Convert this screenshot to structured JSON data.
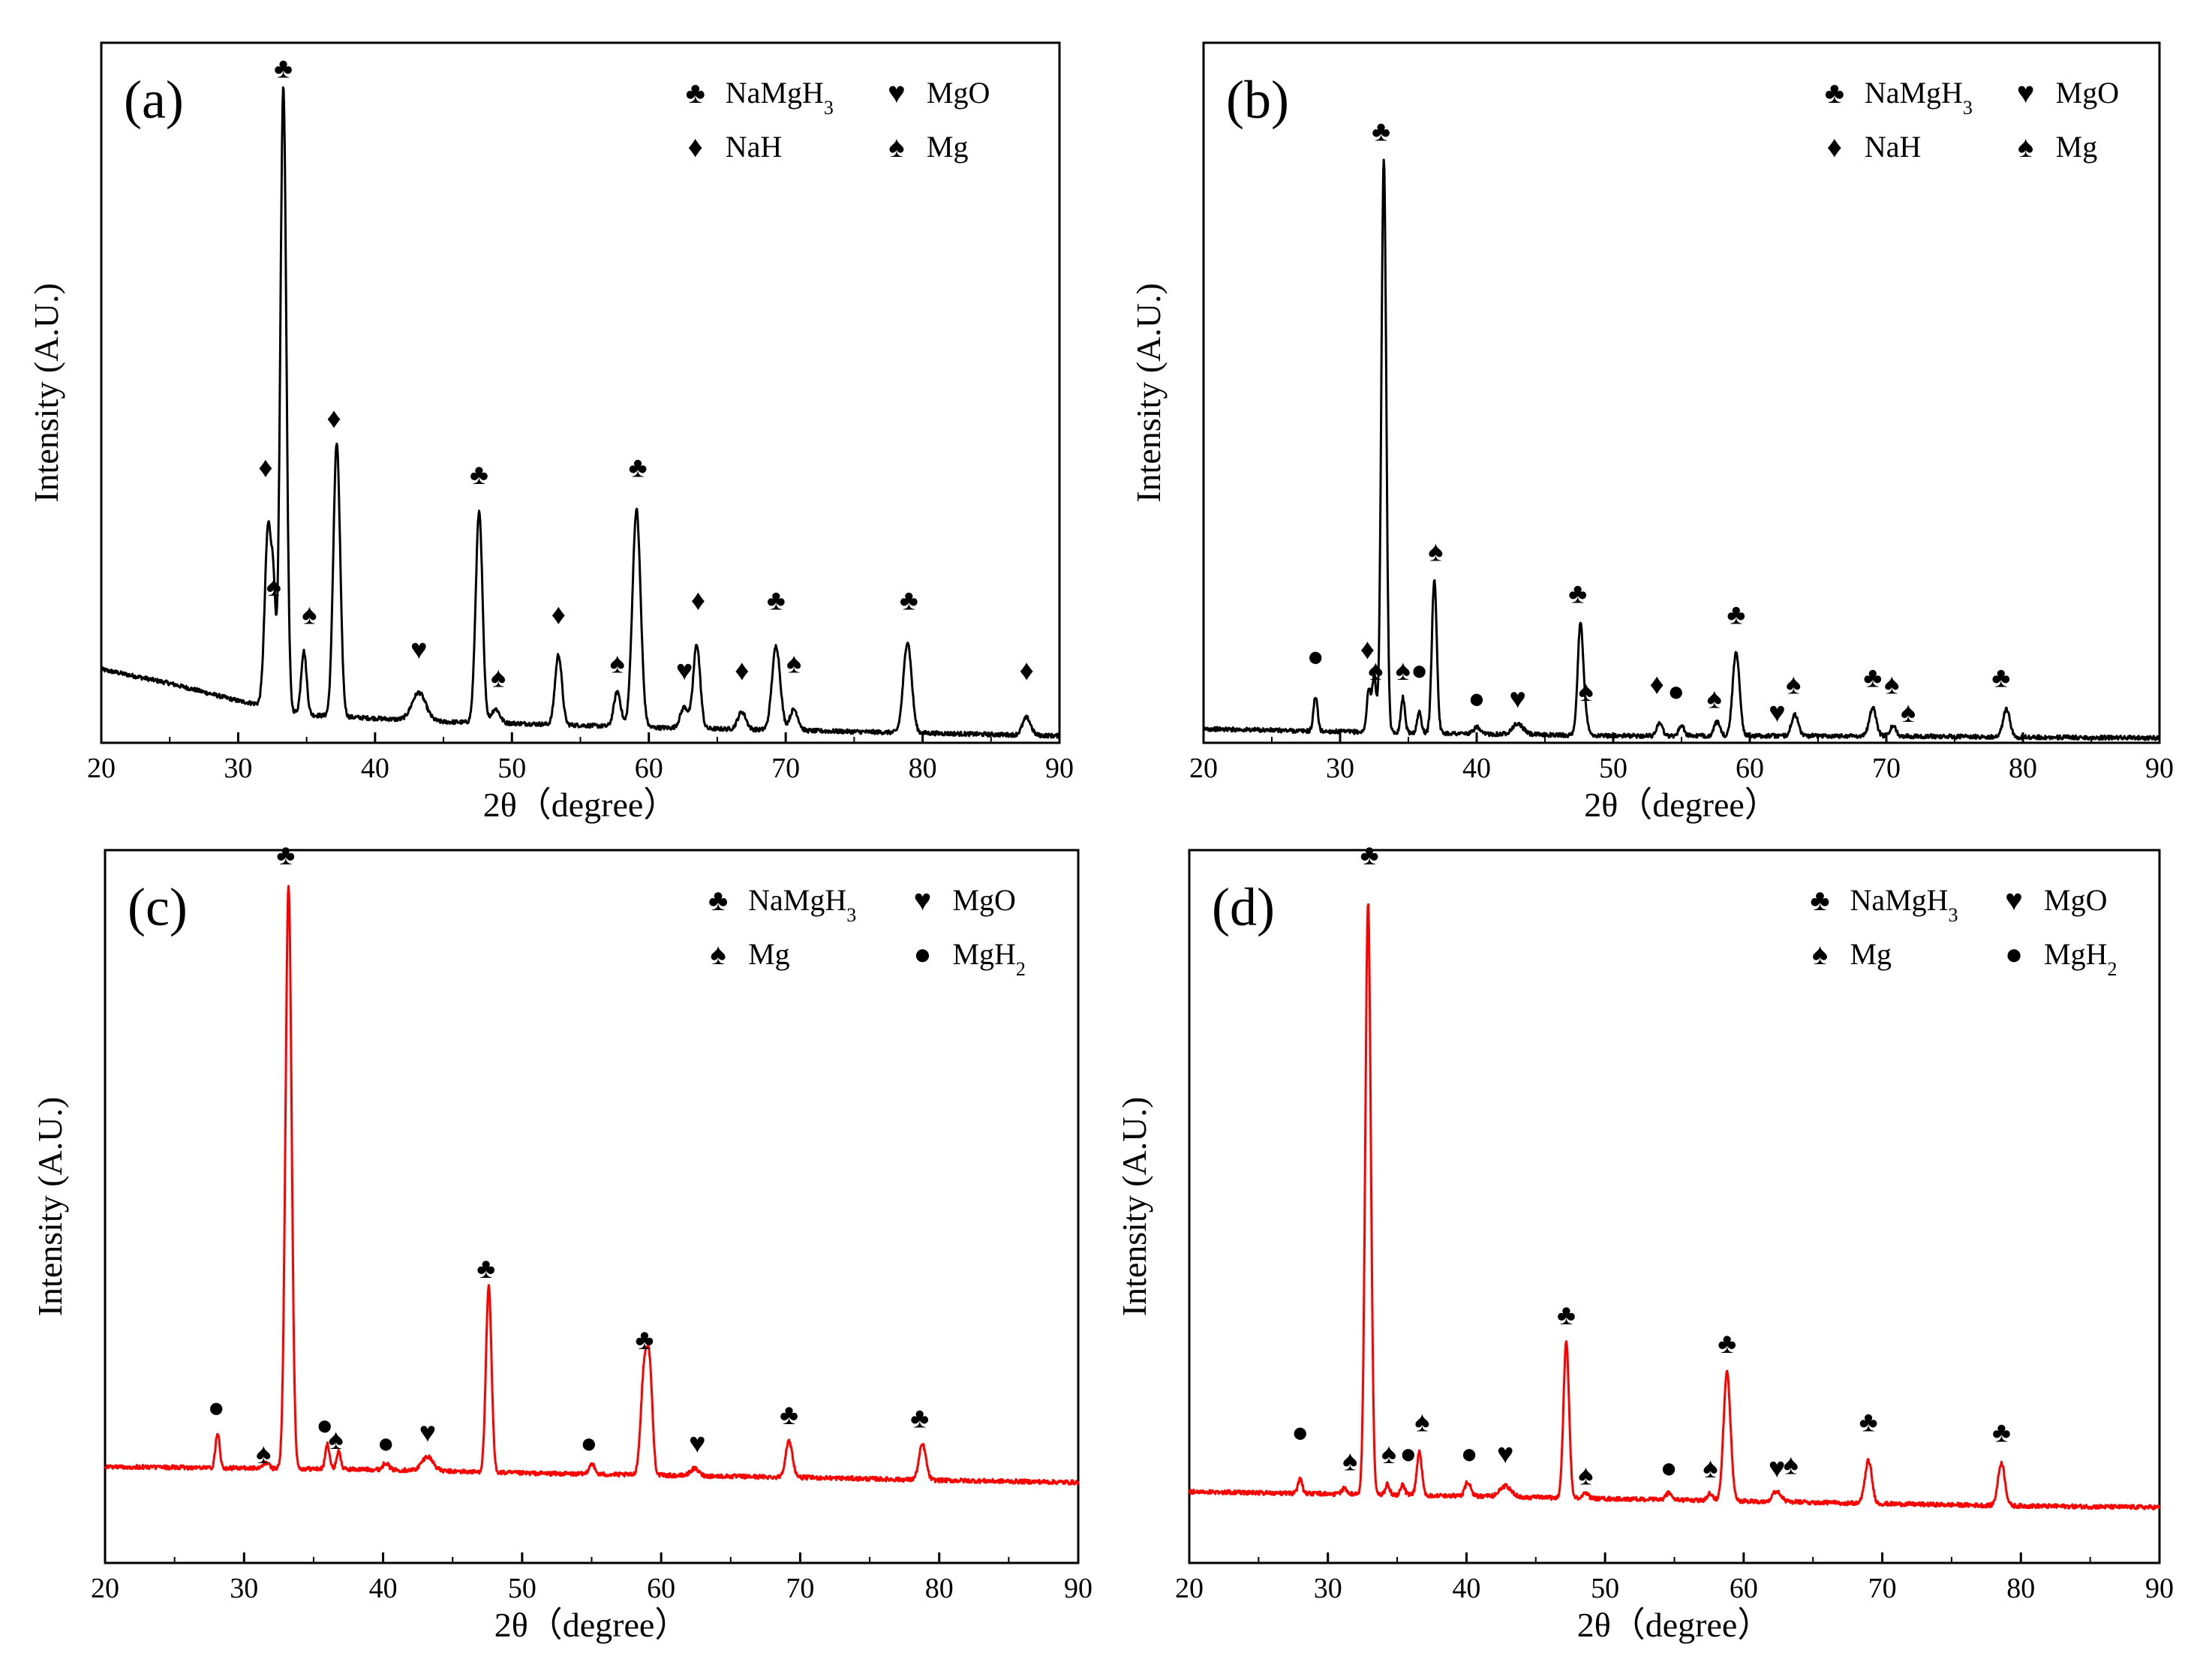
{
  "symbols": {
    "club": "♣",
    "heart": "♥",
    "diamond": "♦",
    "spade": "♠",
    "dot": "●"
  },
  "colors": {
    "black": "#000000",
    "red": "#ff0000"
  },
  "chart_data": [
    {
      "type": "line",
      "panel_label": "(a)",
      "color": "#000000",
      "xlabel": "2θ（degree）",
      "ylabel": "Intensity (A.U.)",
      "xlim": [
        20,
        90
      ],
      "ylim": [
        0,
        100
      ],
      "xticks": [
        "20",
        "30",
        "40",
        "50",
        "60",
        "70",
        "80",
        "90"
      ],
      "legend": [
        {
          "symbol": "club",
          "label": "NaMgH",
          "sub": "3"
        },
        {
          "symbol": "heart",
          "label": "MgO",
          "sub": ""
        },
        {
          "symbol": "diamond",
          "label": "NaH",
          "sub": ""
        },
        {
          "symbol": "spade",
          "label": "Mg",
          "sub": ""
        }
      ],
      "baseline": [
        [
          20,
          10.5
        ],
        [
          25,
          8.5
        ],
        [
          30,
          6
        ],
        [
          31.5,
          5.5
        ],
        [
          35,
          4
        ],
        [
          40,
          3.5
        ],
        [
          45,
          3
        ],
        [
          50,
          2.8
        ],
        [
          60,
          2.2
        ],
        [
          70,
          1.8
        ],
        [
          80,
          1.4
        ],
        [
          90,
          1
        ]
      ],
      "peaks": [
        {
          "x": 32.2,
          "h": 26,
          "w": 0.25
        },
        {
          "x": 32.6,
          "h": 12,
          "w": 0.15
        },
        {
          "x": 33.3,
          "h": 89,
          "w": 0.22
        },
        {
          "x": 34.8,
          "h": 9,
          "w": 0.2
        },
        {
          "x": 37.2,
          "h": 39,
          "w": 0.25
        },
        {
          "x": 43.2,
          "h": 4,
          "w": 0.5
        },
        {
          "x": 47.6,
          "h": 30,
          "w": 0.25
        },
        {
          "x": 48.8,
          "h": 2,
          "w": 0.3
        },
        {
          "x": 53.4,
          "h": 10,
          "w": 0.25
        },
        {
          "x": 57.7,
          "h": 5,
          "w": 0.25
        },
        {
          "x": 59.1,
          "h": 31,
          "w": 0.3
        },
        {
          "x": 62.6,
          "h": 3,
          "w": 0.3
        },
        {
          "x": 63.5,
          "h": 12,
          "w": 0.25
        },
        {
          "x": 66.8,
          "h": 2.5,
          "w": 0.3
        },
        {
          "x": 69.3,
          "h": 12,
          "w": 0.3
        },
        {
          "x": 70.6,
          "h": 3,
          "w": 0.3
        },
        {
          "x": 78.9,
          "h": 13,
          "w": 0.3
        },
        {
          "x": 87.6,
          "h": 2.5,
          "w": 0.3
        }
      ],
      "annotations": [
        {
          "x": 33.3,
          "y": 95,
          "symbol": "club"
        },
        {
          "x": 32.0,
          "y": 38,
          "symbol": "diamond"
        },
        {
          "x": 32.6,
          "y": 21,
          "symbol": "spade"
        },
        {
          "x": 37.0,
          "y": 45,
          "symbol": "diamond"
        },
        {
          "x": 35.2,
          "y": 17,
          "symbol": "spade"
        },
        {
          "x": 43.2,
          "y": 12,
          "symbol": "heart"
        },
        {
          "x": 47.6,
          "y": 37,
          "symbol": "club"
        },
        {
          "x": 49.0,
          "y": 8,
          "symbol": "spade"
        },
        {
          "x": 53.4,
          "y": 17,
          "symbol": "diamond"
        },
        {
          "x": 57.7,
          "y": 10,
          "symbol": "spade"
        },
        {
          "x": 59.2,
          "y": 38,
          "symbol": "club"
        },
        {
          "x": 62.6,
          "y": 9,
          "symbol": "heart"
        },
        {
          "x": 63.6,
          "y": 19,
          "symbol": "diamond"
        },
        {
          "x": 66.8,
          "y": 9,
          "symbol": "diamond"
        },
        {
          "x": 69.3,
          "y": 19,
          "symbol": "club"
        },
        {
          "x": 70.6,
          "y": 10,
          "symbol": "spade"
        },
        {
          "x": 79.0,
          "y": 19,
          "symbol": "club"
        },
        {
          "x": 87.6,
          "y": 9,
          "symbol": "diamond"
        }
      ]
    },
    {
      "type": "line",
      "panel_label": "(b)",
      "color": "#000000",
      "xlabel": "2θ（degree）",
      "ylabel": "Intensity (A.U.)",
      "xlim": [
        20,
        90
      ],
      "ylim": [
        0,
        100
      ],
      "xticks": [
        "20",
        "30",
        "40",
        "50",
        "60",
        "70",
        "80",
        "90"
      ],
      "legend": [
        {
          "symbol": "club",
          "label": "NaMgH",
          "sub": "3"
        },
        {
          "symbol": "heart",
          "label": "MgO",
          "sub": ""
        },
        {
          "symbol": "diamond",
          "label": "NaH",
          "sub": ""
        },
        {
          "symbol": "spade",
          "label": "Mg",
          "sub": ""
        }
      ],
      "baseline": [
        [
          20,
          2
        ],
        [
          30,
          1.6
        ],
        [
          40,
          1.3
        ],
        [
          50,
          1
        ],
        [
          60,
          1
        ],
        [
          70,
          1
        ],
        [
          80,
          0.8
        ],
        [
          90,
          0.7
        ]
      ],
      "peaks": [
        {
          "x": 28.2,
          "h": 5,
          "w": 0.15
        },
        {
          "x": 32.1,
          "h": 6,
          "w": 0.15
        },
        {
          "x": 32.5,
          "h": 8,
          "w": 0.15
        },
        {
          "x": 33.2,
          "h": 82,
          "w": 0.18
        },
        {
          "x": 34.6,
          "h": 5,
          "w": 0.15
        },
        {
          "x": 35.8,
          "h": 3,
          "w": 0.15
        },
        {
          "x": 36.9,
          "h": 22,
          "w": 0.18
        },
        {
          "x": 40.0,
          "h": 1,
          "w": 0.2
        },
        {
          "x": 43.0,
          "h": 1.5,
          "w": 0.4
        },
        {
          "x": 47.6,
          "h": 16,
          "w": 0.2
        },
        {
          "x": 48.0,
          "h": 2,
          "w": 0.2
        },
        {
          "x": 53.4,
          "h": 2,
          "w": 0.2
        },
        {
          "x": 55.0,
          "h": 1.5,
          "w": 0.2
        },
        {
          "x": 57.6,
          "h": 2,
          "w": 0.2
        },
        {
          "x": 59.0,
          "h": 12,
          "w": 0.25
        },
        {
          "x": 63.3,
          "h": 3,
          "w": 0.25
        },
        {
          "x": 69.0,
          "h": 4,
          "w": 0.25
        },
        {
          "x": 70.5,
          "h": 1.5,
          "w": 0.2
        },
        {
          "x": 78.8,
          "h": 4,
          "w": 0.25
        }
      ],
      "annotations": [
        {
          "x": 28.2,
          "y": 11,
          "symbol": "dot"
        },
        {
          "x": 33.0,
          "y": 86,
          "symbol": "club"
        },
        {
          "x": 32.0,
          "y": 12,
          "symbol": "diamond"
        },
        {
          "x": 32.6,
          "y": 9,
          "symbol": "spade"
        },
        {
          "x": 34.6,
          "y": 9,
          "symbol": "spade"
        },
        {
          "x": 35.8,
          "y": 9,
          "symbol": "dot"
        },
        {
          "x": 37.0,
          "y": 26,
          "symbol": "spade"
        },
        {
          "x": 40.0,
          "y": 5,
          "symbol": "dot"
        },
        {
          "x": 43.0,
          "y": 5,
          "symbol": "heart"
        },
        {
          "x": 47.4,
          "y": 20,
          "symbol": "club"
        },
        {
          "x": 48.0,
          "y": 6,
          "symbol": "spade"
        },
        {
          "x": 53.2,
          "y": 7,
          "symbol": "diamond"
        },
        {
          "x": 54.6,
          "y": 6,
          "symbol": "dot"
        },
        {
          "x": 57.4,
          "y": 5,
          "symbol": "spade"
        },
        {
          "x": 59.0,
          "y": 17,
          "symbol": "club"
        },
        {
          "x": 62.0,
          "y": 3,
          "symbol": "heart"
        },
        {
          "x": 63.2,
          "y": 7,
          "symbol": "spade"
        },
        {
          "x": 69.0,
          "y": 8,
          "symbol": "club"
        },
        {
          "x": 70.4,
          "y": 7,
          "symbol": "spade"
        },
        {
          "x": 71.6,
          "y": 3,
          "symbol": "spade"
        },
        {
          "x": 78.4,
          "y": 8,
          "symbol": "club"
        }
      ]
    },
    {
      "type": "line",
      "panel_label": "(c)",
      "color": "#ff0000",
      "xlabel": "2θ（degree）",
      "ylabel": "Intensity (A.U.)",
      "xlim": [
        20,
        90
      ],
      "ylim": [
        0,
        100
      ],
      "xticks": [
        "20",
        "30",
        "40",
        "50",
        "60",
        "70",
        "80",
        "90"
      ],
      "legend": [
        {
          "symbol": "club",
          "label": "NaMgH",
          "sub": "3"
        },
        {
          "symbol": "heart",
          "label": "MgO",
          "sub": ""
        },
        {
          "symbol": "spade",
          "label": "Mg",
          "sub": ""
        },
        {
          "symbol": "dot",
          "label": "MgH",
          "sub": "2"
        }
      ],
      "baseline": [
        [
          20,
          13.5
        ],
        [
          30,
          13.3
        ],
        [
          40,
          13.1
        ],
        [
          50,
          12.6
        ],
        [
          60,
          12.3
        ],
        [
          70,
          12
        ],
        [
          80,
          11.6
        ],
        [
          90,
          11.3
        ]
      ],
      "peaks": [
        {
          "x": 28.1,
          "h": 5,
          "w": 0.15
        },
        {
          "x": 31.6,
          "h": 0.8,
          "w": 0.2
        },
        {
          "x": 33.2,
          "h": 82,
          "w": 0.22
        },
        {
          "x": 36.0,
          "h": 3.5,
          "w": 0.15
        },
        {
          "x": 36.8,
          "h": 2.5,
          "w": 0.15
        },
        {
          "x": 40.2,
          "h": 1,
          "w": 0.2
        },
        {
          "x": 43.2,
          "h": 2,
          "w": 0.4
        },
        {
          "x": 47.6,
          "h": 26,
          "w": 0.2
        },
        {
          "x": 55.0,
          "h": 1.5,
          "w": 0.2
        },
        {
          "x": 58.8,
          "h": 15,
          "w": 0.25
        },
        {
          "x": 59.2,
          "h": 12,
          "w": 0.2
        },
        {
          "x": 62.4,
          "h": 1,
          "w": 0.3
        },
        {
          "x": 69.2,
          "h": 5,
          "w": 0.25
        },
        {
          "x": 78.8,
          "h": 5,
          "w": 0.25
        }
      ],
      "annotations": [
        {
          "x": 28.0,
          "y": 20.5,
          "symbol": "dot"
        },
        {
          "x": 31.4,
          "y": 14,
          "symbol": "spade"
        },
        {
          "x": 33.0,
          "y": 98,
          "symbol": "club"
        },
        {
          "x": 35.8,
          "y": 18,
          "symbol": "dot"
        },
        {
          "x": 36.6,
          "y": 16,
          "symbol": "spade"
        },
        {
          "x": 40.2,
          "y": 15.5,
          "symbol": "dot"
        },
        {
          "x": 43.2,
          "y": 17,
          "symbol": "heart"
        },
        {
          "x": 47.4,
          "y": 40,
          "symbol": "club"
        },
        {
          "x": 54.8,
          "y": 15.5,
          "symbol": "dot"
        },
        {
          "x": 58.8,
          "y": 30,
          "symbol": "club"
        },
        {
          "x": 62.6,
          "y": 15.5,
          "symbol": "heart"
        },
        {
          "x": 69.2,
          "y": 19.5,
          "symbol": "club"
        },
        {
          "x": 78.6,
          "y": 19,
          "symbol": "club"
        }
      ]
    },
    {
      "type": "line",
      "panel_label": "(d)",
      "color": "#ff0000",
      "xlabel": "2θ（degree）",
      "ylabel": "Intensity (A.U.)",
      "xlim": [
        20,
        90
      ],
      "ylim": [
        0,
        100
      ],
      "xticks": [
        "20",
        "30",
        "40",
        "50",
        "60",
        "70",
        "80",
        "90"
      ],
      "legend": [
        {
          "symbol": "club",
          "label": "NaMgH",
          "sub": "3"
        },
        {
          "symbol": "heart",
          "label": "MgO",
          "sub": ""
        },
        {
          "symbol": "spade",
          "label": "Mg",
          "sub": ""
        },
        {
          "symbol": "dot",
          "label": "MgH",
          "sub": "2"
        }
      ],
      "baseline": [
        [
          20,
          10
        ],
        [
          30,
          9.7
        ],
        [
          40,
          9.4
        ],
        [
          50,
          9
        ],
        [
          60,
          8.7
        ],
        [
          70,
          8.3
        ],
        [
          80,
          8
        ],
        [
          90,
          7.8
        ]
      ],
      "peaks": [
        {
          "x": 28.0,
          "h": 2,
          "w": 0.15
        },
        {
          "x": 31.2,
          "h": 0.8,
          "w": 0.2
        },
        {
          "x": 32.9,
          "h": 83,
          "w": 0.2
        },
        {
          "x": 34.3,
          "h": 1.5,
          "w": 0.15
        },
        {
          "x": 35.4,
          "h": 1.5,
          "w": 0.15
        },
        {
          "x": 36.6,
          "h": 6,
          "w": 0.18
        },
        {
          "x": 40.1,
          "h": 2,
          "w": 0.2
        },
        {
          "x": 42.8,
          "h": 1.5,
          "w": 0.4
        },
        {
          "x": 47.2,
          "h": 22,
          "w": 0.2
        },
        {
          "x": 48.6,
          "h": 0.8,
          "w": 0.2
        },
        {
          "x": 54.6,
          "h": 1,
          "w": 0.2
        },
        {
          "x": 57.6,
          "h": 1,
          "w": 0.2
        },
        {
          "x": 58.8,
          "h": 18,
          "w": 0.25
        },
        {
          "x": 62.4,
          "h": 1.5,
          "w": 0.3
        },
        {
          "x": 69.0,
          "h": 6,
          "w": 0.25
        },
        {
          "x": 78.6,
          "h": 6,
          "w": 0.25
        }
      ],
      "annotations": [
        {
          "x": 28.0,
          "y": 17,
          "symbol": "dot"
        },
        {
          "x": 31.6,
          "y": 13,
          "symbol": "spade"
        },
        {
          "x": 33.0,
          "y": 98,
          "symbol": "club"
        },
        {
          "x": 34.4,
          "y": 14,
          "symbol": "spade"
        },
        {
          "x": 35.8,
          "y": 14,
          "symbol": "dot"
        },
        {
          "x": 36.8,
          "y": 18.5,
          "symbol": "spade"
        },
        {
          "x": 40.2,
          "y": 14,
          "symbol": "dot"
        },
        {
          "x": 42.8,
          "y": 14,
          "symbol": "heart"
        },
        {
          "x": 47.2,
          "y": 33.5,
          "symbol": "club"
        },
        {
          "x": 48.6,
          "y": 11,
          "symbol": "spade"
        },
        {
          "x": 54.6,
          "y": 12,
          "symbol": "dot"
        },
        {
          "x": 57.6,
          "y": 12,
          "symbol": "spade"
        },
        {
          "x": 58.8,
          "y": 29.5,
          "symbol": "club"
        },
        {
          "x": 62.4,
          "y": 12,
          "symbol": "heart"
        },
        {
          "x": 63.4,
          "y": 12.5,
          "symbol": "spade"
        },
        {
          "x": 69.0,
          "y": 18.5,
          "symbol": "club"
        },
        {
          "x": 78.6,
          "y": 17,
          "symbol": "club"
        }
      ]
    }
  ]
}
